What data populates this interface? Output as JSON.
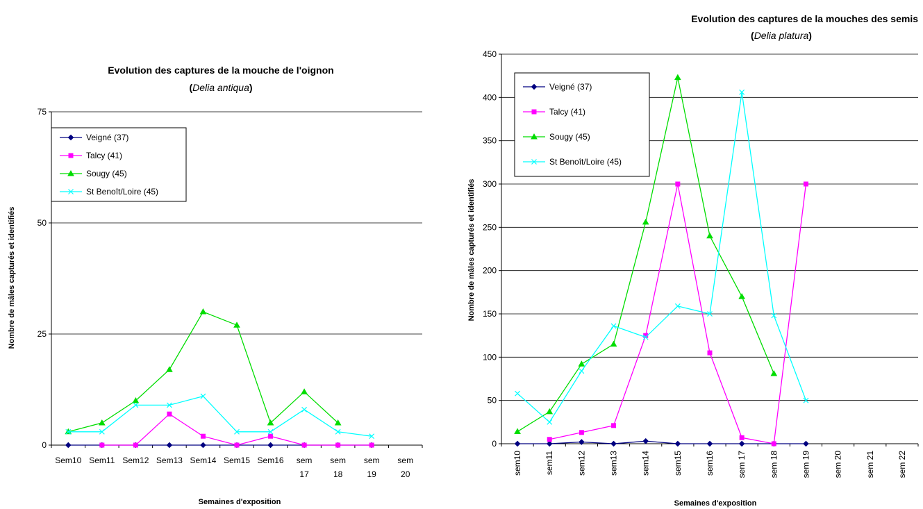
{
  "colors": {
    "background": "#ffffff",
    "gridline": "#000000",
    "axis": "#000000",
    "series": {
      "Veigné (37)": "#000080",
      "Talcy (41)": "#ff00ff",
      "Sougy (45)": "#00dd00",
      "St Benoît/Loire (45)": "#00ffff"
    }
  },
  "chart_data": [
    {
      "type": "line",
      "title": "Evolution des captures de la mouche de l'oignon",
      "subtitle_open": "(",
      "subtitle_italic": "Delia antiqua",
      "subtitle_close": ")",
      "xlabel": "Semaines d'exposition",
      "ylabel": "Nombre de mâles capturés et identifiés",
      "ylim": [
        0,
        75
      ],
      "yticks": [
        "0",
        "25",
        "50",
        "75"
      ],
      "grid": true,
      "legend_position": "top-left",
      "categories": [
        "Sem10",
        "Sem11",
        "Sem12",
        "Sem13",
        "Sem14",
        "Sem15",
        "Sem16",
        "sem 17",
        "sem 18",
        "sem 19",
        "sem 20"
      ],
      "series": [
        {
          "name": "Veigné (37)",
          "marker": "diamond",
          "values": [
            0,
            0,
            0,
            0,
            0,
            0,
            0,
            0,
            0,
            0,
            null
          ]
        },
        {
          "name": "Talcy (41)",
          "marker": "square",
          "values": [
            null,
            0,
            0,
            7,
            2,
            0,
            2,
            0,
            0,
            0,
            null
          ]
        },
        {
          "name": "Sougy (45)",
          "marker": "triangle",
          "values": [
            3,
            5,
            10,
            17,
            30,
            27,
            5,
            12,
            5,
            null,
            null
          ]
        },
        {
          "name": "St Benoît/Loire (45)",
          "marker": "x",
          "values": [
            3,
            3,
            9,
            9,
            11,
            3,
            3,
            8,
            3,
            2,
            null
          ]
        }
      ]
    },
    {
      "type": "line",
      "title": "Evolution des captures de la mouches des semis",
      "subtitle_open": "(",
      "subtitle_italic": "Delia platura",
      "subtitle_close": ")",
      "xlabel": "Semaines d'exposition",
      "ylabel": "Nombre de mâles capturés et identifiés",
      "ylim": [
        0,
        450
      ],
      "yticks": [
        "0",
        "50",
        "100",
        "150",
        "200",
        "250",
        "300",
        "350",
        "400",
        "450"
      ],
      "grid": true,
      "legend_position": "top-left",
      "categories": [
        "sem10",
        "sem11",
        "sem12",
        "sem13",
        "sem14",
        "sem15",
        "sem16",
        "sem 17",
        "sem 18",
        "sem 19",
        "sem 20",
        "sem 21",
        "sem 22"
      ],
      "series": [
        {
          "name": "Veigné (37)",
          "marker": "diamond",
          "values": [
            0,
            0,
            2,
            0,
            3,
            0,
            0,
            0,
            0,
            0,
            null,
            null,
            null
          ]
        },
        {
          "name": "Talcy (41)",
          "marker": "square",
          "values": [
            null,
            5,
            13,
            21,
            125,
            300,
            105,
            7,
            0,
            300,
            null,
            null,
            null
          ]
        },
        {
          "name": "Sougy (45)",
          "marker": "triangle",
          "values": [
            14,
            37,
            92,
            115,
            256,
            423,
            240,
            170,
            81,
            null,
            null,
            null,
            null
          ]
        },
        {
          "name": "St Benoît/Loire (45)",
          "marker": "x",
          "values": [
            58,
            25,
            84,
            136,
            123,
            159,
            150,
            406,
            148,
            50,
            null,
            null,
            null
          ]
        }
      ]
    }
  ]
}
